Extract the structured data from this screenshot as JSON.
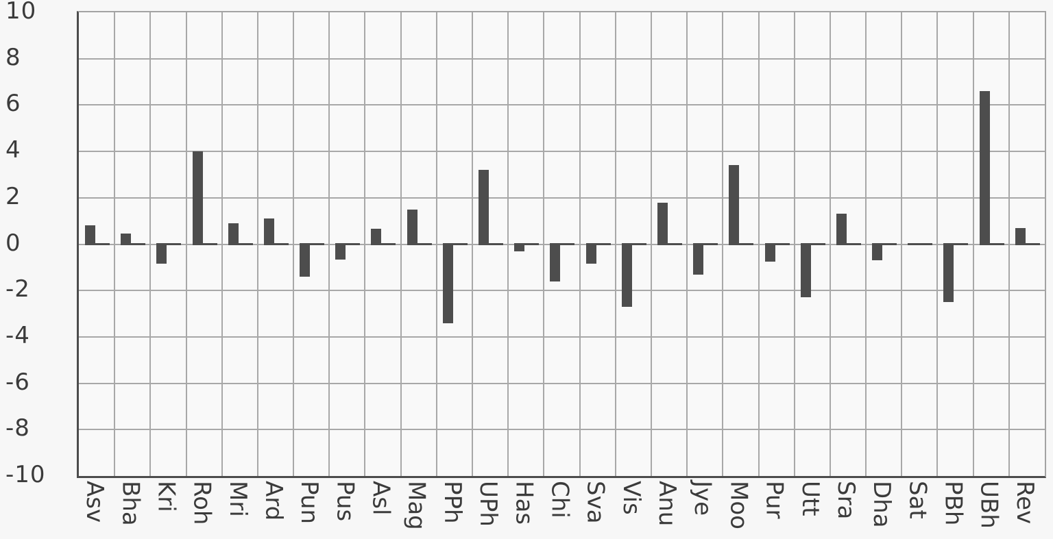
{
  "figure": {
    "background_color": "#f7f7f7",
    "plot_background_color": "#f9f9f9"
  },
  "chart_data": {
    "type": "bar",
    "title": "",
    "xlabel": "",
    "ylabel": "",
    "categories": [
      "Asv",
      "Bha",
      "Kri",
      "Roh",
      "Mri",
      "Ard",
      "Pun",
      "Pus",
      "Asl",
      "Mag",
      "PPh",
      "UPh",
      "Has",
      "Chi",
      "Sva",
      "Vis",
      "Anu",
      "Jye",
      "Moo",
      "Pur",
      "Utt",
      "Sra",
      "Dha",
      "Sat",
      "PBh",
      "UBh",
      "Rev"
    ],
    "values": [
      0.8,
      0.45,
      -0.85,
      4.0,
      0.9,
      1.1,
      -1.4,
      -0.65,
      0.65,
      1.5,
      -3.4,
      3.2,
      -0.3,
      -1.6,
      -0.85,
      -2.7,
      1.8,
      -1.3,
      3.4,
      -0.75,
      -2.3,
      1.3,
      -0.7,
      0,
      -2.5,
      6.6,
      0.7
    ],
    "ylim": [
      -10,
      10
    ],
    "ytick_step": 2,
    "ytick_labels": [
      "10",
      "8",
      "6",
      "4",
      "2",
      "0",
      "-2",
      "-4",
      "-6",
      "-8",
      "-10"
    ],
    "grid": true,
    "legend_position": "none",
    "x_label_rotation": "vertical-clockwise",
    "zero_line_style": "dark dashed segment per category at y=0",
    "bar_color": "#4d4d4d",
    "grid_color": "#a8a8a8",
    "axis_color": "#4c4c4c",
    "text_color": "#3b3b3b"
  }
}
